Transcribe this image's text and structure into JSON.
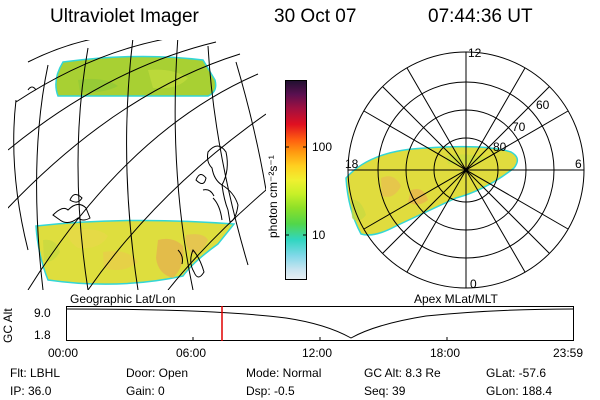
{
  "header": {
    "instrument": "Ultraviolet Imager",
    "date": "30 Oct 07",
    "time": "07:44:36 UT"
  },
  "colors": {
    "emission_green": "#9ccc2f",
    "emission_yellow": "#e3dd3c",
    "emission_orange": "#e7a84f",
    "edge_cyan": "#33d6d6",
    "marker_red": "#e00000"
  },
  "geo_panel": {
    "label": "Geographic Lat/Lon"
  },
  "polar_panel": {
    "label": "Apex MLat/MLT",
    "mlt_labels": {
      "top": "12",
      "left": "18",
      "right": "6",
      "bottom": "0"
    },
    "lat_labels": [
      "80",
      "70",
      "60"
    ]
  },
  "colorbar": {
    "unit": "photon cm⁻²s⁻¹",
    "ticks": [
      "100",
      "10"
    ],
    "colors": [
      "#201030",
      "#5a1050",
      "#a01040",
      "#e01020",
      "#ff6010",
      "#ff9a10",
      "#ffd020",
      "#f0f030",
      "#c8f028",
      "#8ee028",
      "#52d64a",
      "#30d6c0",
      "#80d8e8",
      "#c8e4f0",
      "#e8eef2"
    ]
  },
  "alt_plot": {
    "ylabel": "GC Alt",
    "yticks": [
      "9.0",
      "1.8"
    ],
    "xticks": [
      "00:00",
      "06:00",
      "12:00",
      "18:00",
      "23:59"
    ],
    "marker_time": "07:44"
  },
  "info": {
    "filter": "Flt: LBHL",
    "ip": "IP: 36.0",
    "door": "Door: Open",
    "gain": "Gain: 0",
    "mode": "Mode: Normal",
    "dsp": "Dsp: -0.5",
    "gc_alt": "GC Alt: 8.3 Re",
    "seq": "Seq: 39",
    "glat": "GLat: -57.6",
    "glon": "GLon: 188.4"
  }
}
